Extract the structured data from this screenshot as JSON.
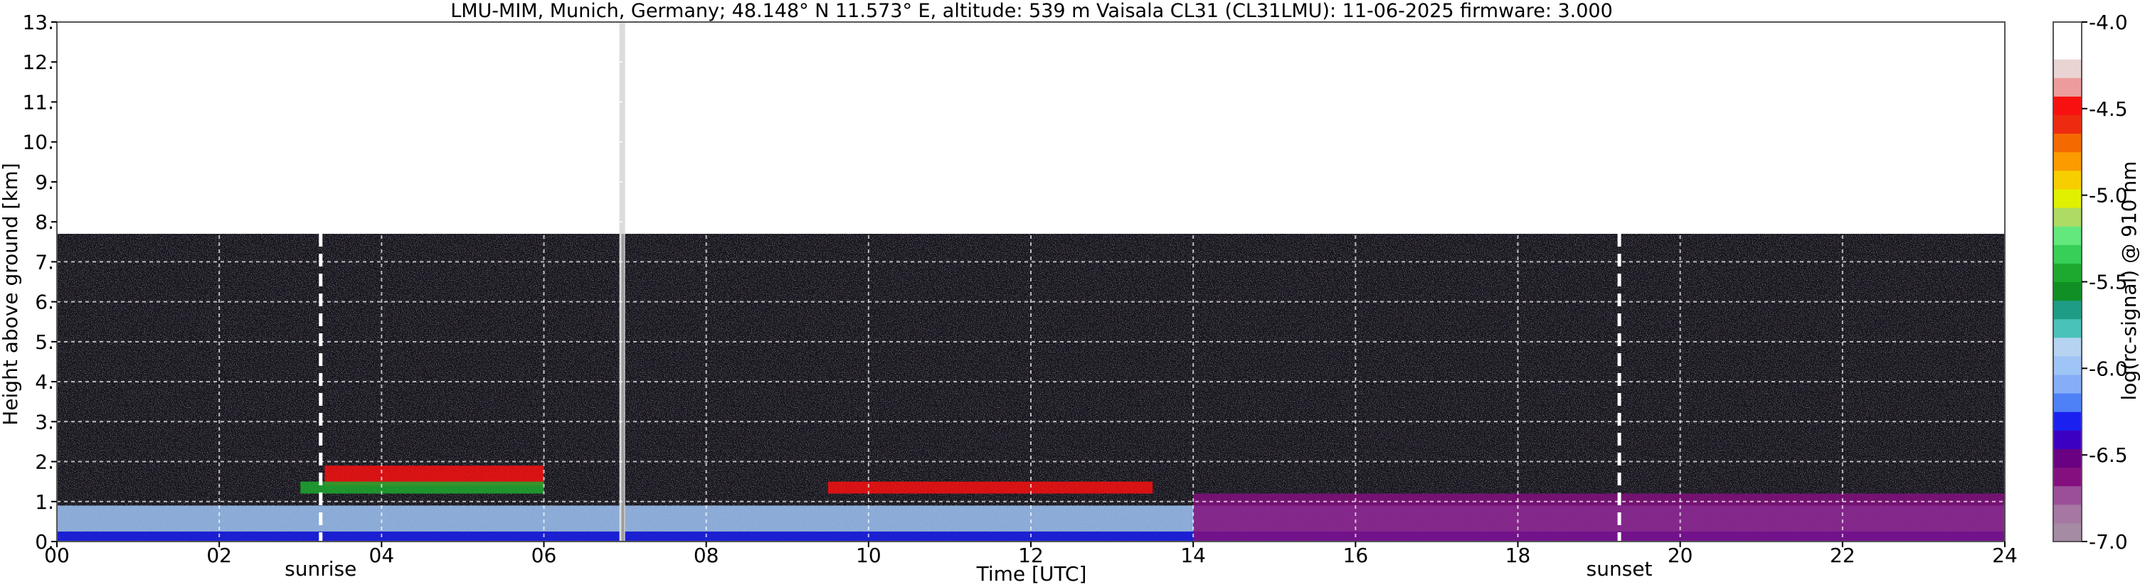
{
  "chart_data": {
    "type": "heatmap",
    "title": "LMU-MIM, Munich, Germany; 48.148° N 11.573° E, altitude: 539 m    Vaisala CL31 (CL31LMU): 11-06-2025    firmware: 3.000",
    "xlabel": "Time [UTC]",
    "ylabel": "Height above ground [km]",
    "xlim": [
      0,
      24
    ],
    "ylim": [
      0,
      13
    ],
    "x_ticks": [
      0,
      2,
      4,
      6,
      8,
      10,
      12,
      14,
      16,
      18,
      20,
      22,
      24
    ],
    "x_tick_labels": [
      "00",
      "02",
      "04",
      "06",
      "08",
      "10",
      "12",
      "14",
      "16",
      "18",
      "20",
      "22",
      "24"
    ],
    "y_ticks": [
      0,
      1,
      2,
      3,
      4,
      5,
      6,
      7,
      8,
      9,
      10,
      11,
      12,
      13
    ],
    "y_tick_labels": [
      "0.",
      "1.",
      "2.",
      "3.",
      "4.",
      "5.",
      "6.",
      "7.",
      "8.",
      "9.",
      "10.",
      "11.",
      "12.",
      "13."
    ],
    "grid": true,
    "data_top_km": 7.7,
    "no_data_gap_utc": [
      6.93,
      7.0
    ],
    "annotations": [
      {
        "label": "sunrise",
        "x": 3.25
      },
      {
        "label": "sunset",
        "x": 19.25
      }
    ],
    "layers": [
      {
        "t_start": 0,
        "t_end": 24,
        "h_bottom": 0.0,
        "h_top": 0.25,
        "value": -6.3
      },
      {
        "t_start": 0,
        "t_end": 24,
        "h_bottom": 0.25,
        "h_top": 0.9,
        "value": -6.0
      },
      {
        "t_start": 14,
        "t_end": 24,
        "h_bottom": 0.0,
        "h_top": 1.2,
        "value": -6.6
      },
      {
        "t_start": 3.3,
        "t_end": 6.0,
        "h_bottom": 1.4,
        "h_top": 1.9,
        "value": -4.5
      },
      {
        "t_start": 3.0,
        "t_end": 6.0,
        "h_bottom": 1.2,
        "h_top": 1.5,
        "value": -5.5
      },
      {
        "t_start": 9.5,
        "t_end": 13.5,
        "h_bottom": 1.2,
        "h_top": 1.5,
        "value": -4.5
      }
    ],
    "colorbar": {
      "label": "log(rc-signal) @ 910 nm",
      "range": [
        -7.0,
        -4.0
      ],
      "tick_values": [
        -4.0,
        -4.5,
        -5.0,
        -5.5,
        -6.0,
        -6.5,
        -7.0
      ],
      "tick_labels": [
        "-4.0",
        "-4.5",
        "-5.0",
        "-5.5",
        "-6.0",
        "-6.5",
        "-7.0"
      ],
      "colors": [
        "#a58ba4",
        "#a777a4",
        "#9a4f98",
        "#83107e",
        "#6a0082",
        "#3c00c2",
        "#1a20f0",
        "#4e80f7",
        "#86aef8",
        "#9fc4f6",
        "#b7d3f2",
        "#49c2b9",
        "#1f9c85",
        "#0f8f24",
        "#1da92f",
        "#37cf58",
        "#63e87e",
        "#aedb63",
        "#e1f000",
        "#f7ce00",
        "#fb9b00",
        "#f56a00",
        "#ee2b10",
        "#f81010",
        "#ed9c9c",
        "#ead3d3",
        "#ffffff",
        "#ffffff"
      ]
    }
  }
}
